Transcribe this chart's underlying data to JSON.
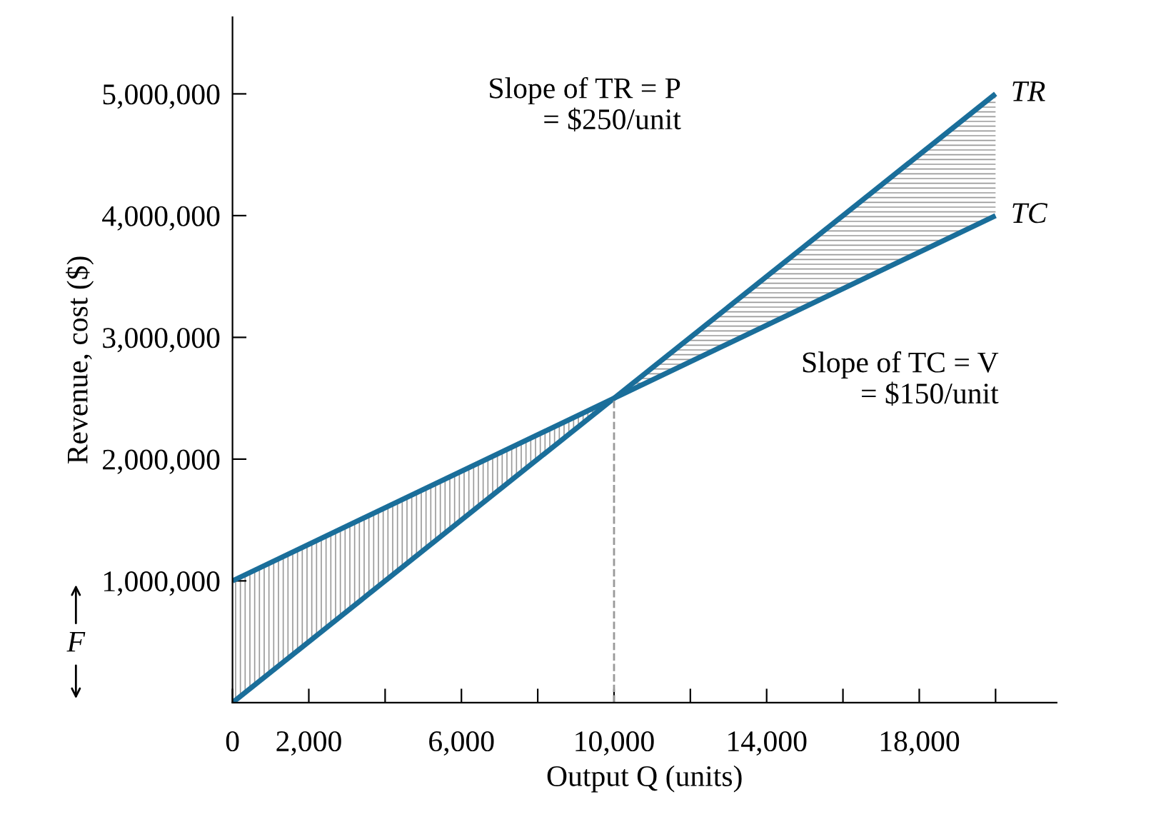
{
  "chart_data": {
    "type": "line",
    "xlabel": "Output Q (units)",
    "ylabel": "Revenue, cost ($)",
    "x": [
      0,
      20000
    ],
    "series": [
      {
        "name": "TR",
        "color": "#1a6e9a",
        "values": [
          0,
          5000000
        ]
      },
      {
        "name": "TC",
        "color": "#1a6e9a",
        "values": [
          1000000,
          4000000
        ]
      }
    ],
    "xlim": [
      0,
      21600
    ],
    "ylim": [
      0,
      5630000
    ],
    "xticks": [
      0,
      {
        "value": 2000,
        "label": "2,000"
      },
      {
        "value": 4000,
        "label": null
      },
      {
        "value": 6000,
        "label": "6,000"
      },
      {
        "value": 8000,
        "label": null
      },
      {
        "value": 10000,
        "label": "10,000"
      },
      {
        "value": 12000,
        "label": null
      },
      {
        "value": 14000,
        "label": "14,000"
      },
      {
        "value": 16000,
        "label": null
      },
      {
        "value": 18000,
        "label": "18,000"
      },
      {
        "value": 20000,
        "label": null
      }
    ],
    "yticks": [
      {
        "value": 1000000,
        "label": "1,000,000"
      },
      {
        "value": 2000000,
        "label": "2,000,000"
      },
      {
        "value": 3000000,
        "label": "3,000,000"
      },
      {
        "value": 4000000,
        "label": "4,000,000"
      },
      {
        "value": 5000000,
        "label": "5,000,000"
      }
    ],
    "ref_lines": [
      {
        "axis": "x",
        "value": 10000,
        "label": null,
        "color": "#999999",
        "line_style": "dashed"
      }
    ],
    "annotations": [
      "Slope of TR = P\n= $250/unit",
      "Slope of TC = V\n= $150/unit",
      "F"
    ],
    "grid": false,
    "legend": false,
    "marker": "none",
    "line_style": "solid"
  }
}
